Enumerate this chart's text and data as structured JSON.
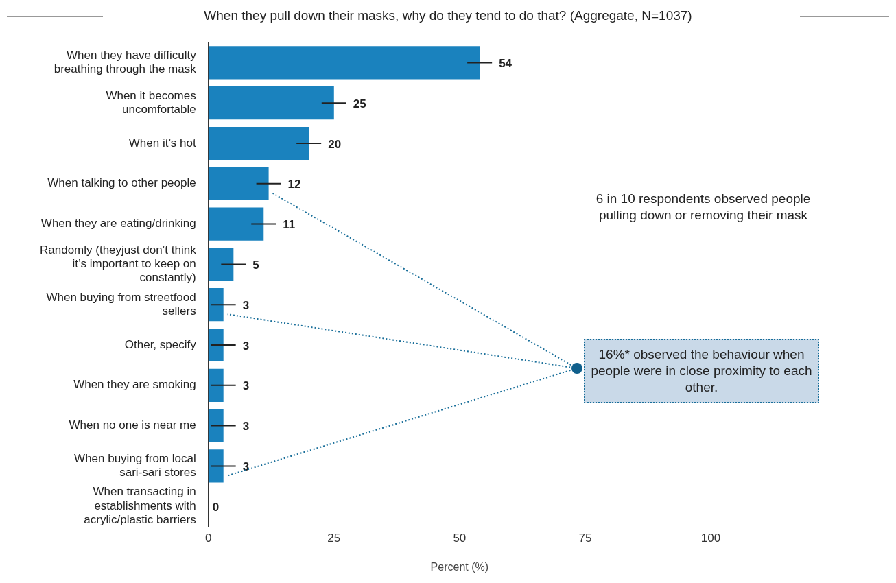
{
  "chart_data": {
    "type": "bar",
    "orientation": "horizontal",
    "title": "When they pull down their masks, why do they tend to do that? (Aggregate, N=1037)",
    "xlabel": "Percent (%)",
    "categories": [
      "When they have difficulty breathing through the mask",
      "When it becomes uncomfortable",
      "When it’s hot",
      "When talking to other people",
      "When they are eating/drinking",
      "Randomly (theyjust don’t think it’s important to keep on constantly)",
      "When buying from streetfood sellers",
      "Other, specify",
      "When they are smoking",
      "When no one is near me",
      "When buying from local sari-sari stores",
      "When transacting in establishments with acrylic/plastic barriers"
    ],
    "values": [
      54,
      25,
      20,
      12,
      11,
      5,
      3,
      3,
      3,
      3,
      3,
      0
    ],
    "color": "#1a82be",
    "xlim": [
      0,
      100
    ],
    "xticks": [
      0,
      25,
      50,
      75,
      100
    ],
    "grid": false,
    "legend": false,
    "data_labels": true,
    "annotations": [
      "6 in 10 respondents observed people pulling down or removing their mask",
      "16%* observed the behaviour when people were in close proximity to each other."
    ]
  }
}
